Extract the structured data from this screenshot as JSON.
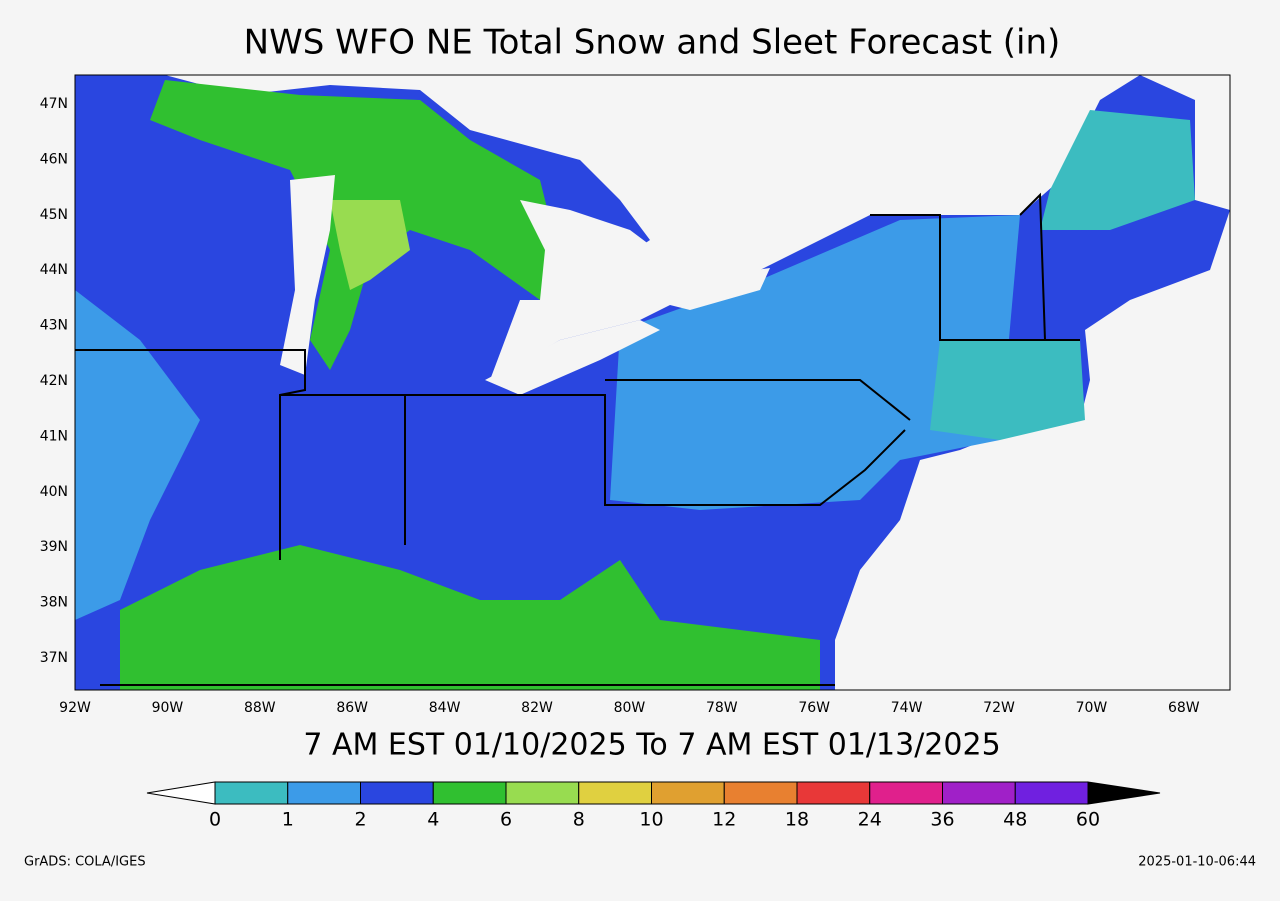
{
  "title": "NWS WFO NE Total Snow and Sleet Forecast (in)",
  "lat_labels": [
    "47N",
    "46N",
    "45N",
    "44N",
    "43N",
    "42N",
    "41N",
    "40N",
    "39N",
    "38N",
    "37N"
  ],
  "lon_labels": [
    "92W",
    "90W",
    "88W",
    "86W",
    "84W",
    "82W",
    "80W",
    "78W",
    "76W",
    "74W",
    "72W",
    "70W",
    "68W"
  ],
  "valid_period": "7 AM EST 01/10/2025 To 7 AM EST 01/13/2025",
  "colorbar": {
    "colors": [
      "#3cbcc0",
      "#3c9be8",
      "#2a46e0",
      "#30c030",
      "#98dc50",
      "#e0d040",
      "#e0a030",
      "#e88030",
      "#e83838",
      "#e0208c",
      "#a020c8",
      "#7020e0"
    ],
    "labels": [
      0,
      1,
      2,
      4,
      6,
      8,
      10,
      12,
      18,
      24,
      36,
      48,
      60
    ]
  },
  "footer_left": "GrADS: COLA/IGES",
  "footer_right": "2025-01-10-06:44"
}
